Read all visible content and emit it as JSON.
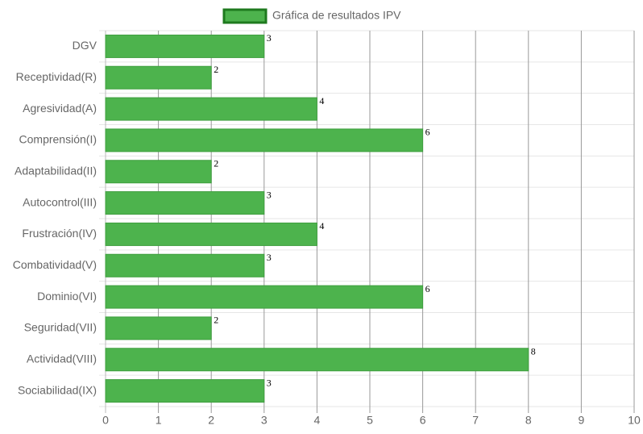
{
  "chart_data": {
    "type": "bar",
    "orientation": "horizontal",
    "categories": [
      "DGV",
      "Receptividad(R)",
      "Agresividad(A)",
      "Comprensión(I)",
      "Adaptabilidad(II)",
      "Autocontrol(III)",
      "Frustración(IV)",
      "Combatividad(V)",
      "Dominio(VI)",
      "Seguridad(VII)",
      "Actividad(VIII)",
      "Sociabilidad(IX)"
    ],
    "series": [
      {
        "name": "Gráfica de resultados IPV",
        "color": "#4db34d",
        "values": [
          3,
          2,
          4,
          6,
          2,
          3,
          4,
          3,
          6,
          2,
          8,
          3
        ]
      }
    ],
    "xlim": [
      0,
      10
    ],
    "xticks": [
      0,
      1,
      2,
      3,
      4,
      5,
      6,
      7,
      8,
      9,
      10
    ],
    "grid": true,
    "legend": "top"
  }
}
